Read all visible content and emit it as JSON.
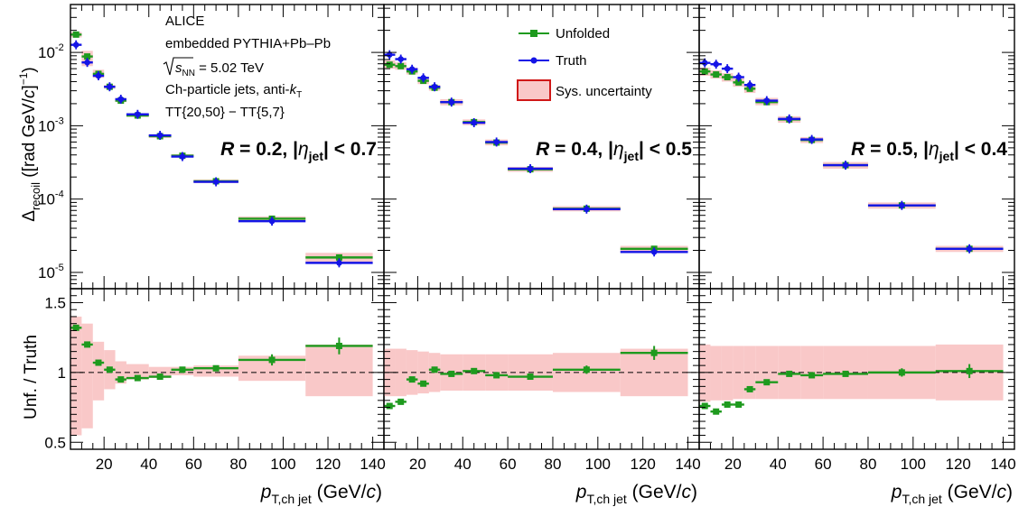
{
  "colors": {
    "unfolded": "#1e9a1e",
    "truth": "#1414e6",
    "sys_fill": "#f9c8c8",
    "sys_edge": "#d01818"
  },
  "legend": {
    "unfolded": "Unfolded",
    "truth": "Truth",
    "sys": "Sys. uncertainty"
  },
  "annotations": {
    "l1": "ALICE",
    "l2": "embedded PYTHIA+Pb–Pb",
    "l3a": "s",
    "l3b": "NN",
    "l3c": " = 5.02 TeV",
    "l4a": "Ch-particle jets, anti-",
    "l4b": "k",
    "l4c": "T",
    "l5": "TT{20,50} − TT{5,7}"
  },
  "axes": {
    "y_top": {
      "a": "Δ",
      "b": "recoil",
      "c": " ([rad GeV/",
      "d": "c",
      "e": "]",
      "f": "−1",
      "g": ")"
    },
    "y_bottom": "Unf. / Truth",
    "x": {
      "a": "p",
      "b": "T,ch jet",
      "c": " (GeV/",
      "d": "c",
      "e": ")"
    },
    "top_ticks": [
      {
        "v": 1e-05,
        "m": "10",
        "e": "-5"
      },
      {
        "v": 0.0001,
        "m": "10",
        "e": "-4"
      },
      {
        "v": 0.001,
        "m": "10",
        "e": "-3"
      },
      {
        "v": 0.01,
        "m": "10",
        "e": "-2"
      }
    ],
    "ratio_ticks": [
      "0.5",
      "1",
      "1.5"
    ],
    "x_ticks": [
      "20",
      "40",
      "60",
      "80",
      "100",
      "120",
      "140"
    ]
  },
  "chart_data": [
    {
      "type": "scatter",
      "label": {
        "a": "R",
        "b": " = 0.2, |",
        "c": "η",
        "d": "jet",
        "e": "| < 0.7"
      },
      "x_edges": [
        5,
        10,
        15,
        20,
        25,
        30,
        40,
        50,
        60,
        80,
        110,
        140
      ],
      "ylim": [
        6e-06,
        0.045
      ],
      "xlim": [
        5,
        145
      ],
      "ratio_ylim": [
        0.45,
        1.6
      ],
      "series": [
        {
          "name": "Unfolded",
          "values": [
            0.0175,
            0.0088,
            0.0051,
            0.0034,
            0.0022,
            0.00138,
            0.00072,
            0.00039,
            0.000175,
            5.4e-05,
            1.6e-05
          ]
        },
        {
          "name": "Truth",
          "values": [
            0.0127,
            0.0073,
            0.0048,
            0.0034,
            0.0023,
            0.00143,
            0.00074,
            0.00038,
            0.000172,
            5e-05,
            1.35e-05
          ]
        }
      ],
      "sys": [
        [
          0.016,
          0.019
        ],
        [
          0.0065,
          0.0105
        ],
        [
          0.0045,
          0.0058
        ],
        [
          0.0032,
          0.0036
        ],
        [
          0.0021,
          0.0024
        ],
        [
          0.00132,
          0.00146
        ],
        [
          0.00068,
          0.00076
        ],
        [
          0.00037,
          0.00041
        ],
        [
          0.000165,
          0.000185
        ],
        [
          5e-05,
          5.8e-05
        ],
        [
          1.35e-05,
          1.85e-05
        ]
      ],
      "ratio": [
        1.32,
        1.2,
        1.07,
        1.02,
        0.95,
        0.96,
        0.97,
        1.02,
        1.03,
        1.09,
        1.19
      ],
      "ratio_sys": [
        [
          0.55,
          1.4
        ],
        [
          0.6,
          1.35
        ],
        [
          0.8,
          1.22
        ],
        [
          0.88,
          1.16
        ],
        [
          0.92,
          1.08
        ],
        [
          0.95,
          1.06
        ],
        [
          0.96,
          1.04
        ],
        [
          0.98,
          1.04
        ],
        [
          0.97,
          1.05
        ],
        [
          0.94,
          1.12
        ],
        [
          0.83,
          1.2
        ]
      ],
      "ratio_err": [
        0.02,
        0.02,
        0.015,
        0.015,
        0.015,
        0.015,
        0.02,
        0.02,
        0.02,
        0.04,
        0.06
      ]
    },
    {
      "type": "scatter",
      "label": {
        "a": "R",
        "b": " = 0.4, |",
        "c": "η",
        "d": "jet",
        "e": "| < 0.5"
      },
      "x_edges": [
        5,
        10,
        15,
        20,
        25,
        30,
        40,
        50,
        60,
        80,
        110,
        140
      ],
      "ylim": [
        6e-06,
        0.045
      ],
      "xlim": [
        5,
        145
      ],
      "ratio_ylim": [
        0.45,
        1.6
      ],
      "series": [
        {
          "name": "Unfolded",
          "values": [
            0.0068,
            0.0065,
            0.0055,
            0.0041,
            0.0033,
            0.0021,
            0.00112,
            0.00059,
            0.000255,
            7.4e-05,
            2.1e-05
          ]
        },
        {
          "name": "Truth",
          "values": [
            0.0093,
            0.0081,
            0.0059,
            0.0045,
            0.0034,
            0.0021,
            0.0011,
            0.0006,
            0.00026,
            7.3e-05,
            1.9e-05
          ]
        }
      ],
      "sys": [
        [
          0.006,
          0.0078
        ],
        [
          0.0058,
          0.0073
        ],
        [
          0.005,
          0.0062
        ],
        [
          0.0037,
          0.0046
        ],
        [
          0.003,
          0.0036
        ],
        [
          0.0019,
          0.0023
        ],
        [
          0.00102,
          0.00122
        ],
        [
          0.00054,
          0.00065
        ],
        [
          0.000235,
          0.000275
        ],
        [
          6.8e-05,
          8e-05
        ],
        [
          1.9e-05,
          2.3e-05
        ]
      ],
      "ratio": [
        0.76,
        0.79,
        0.95,
        0.92,
        1.02,
        0.99,
        1.01,
        0.98,
        0.97,
        1.02,
        1.14
      ],
      "ratio_sys": [
        [
          0.83,
          1.17
        ],
        [
          0.83,
          1.17
        ],
        [
          0.84,
          1.16
        ],
        [
          0.85,
          1.15
        ],
        [
          0.86,
          1.14
        ],
        [
          0.87,
          1.13
        ],
        [
          0.87,
          1.13
        ],
        [
          0.87,
          1.13
        ],
        [
          0.87,
          1.13
        ],
        [
          0.86,
          1.14
        ],
        [
          0.83,
          1.17
        ]
      ],
      "ratio_err": [
        0.02,
        0.02,
        0.015,
        0.015,
        0.015,
        0.015,
        0.02,
        0.02,
        0.02,
        0.03,
        0.05
      ]
    },
    {
      "type": "scatter",
      "label": {
        "a": "R",
        "b": " = 0.5, |",
        "c": "η",
        "d": "jet",
        "e": "| < 0.4"
      },
      "x_edges": [
        5,
        10,
        15,
        20,
        25,
        30,
        40,
        50,
        60,
        80,
        110,
        140
      ],
      "ylim": [
        6e-06,
        0.045
      ],
      "xlim": [
        5,
        145
      ],
      "ratio_ylim": [
        0.45,
        1.6
      ],
      "series": [
        {
          "name": "Unfolded",
          "values": [
            0.0055,
            0.005,
            0.0046,
            0.0039,
            0.0032,
            0.0021,
            0.00122,
            0.00064,
            0.00029,
            8.2e-05,
            2.1e-05
          ]
        },
        {
          "name": "Truth",
          "values": [
            0.0072,
            0.0069,
            0.006,
            0.0046,
            0.0036,
            0.0022,
            0.00124,
            0.00065,
            0.00029,
            8.2e-05,
            2.1e-05
          ]
        }
      ],
      "sys": [
        [
          0.0048,
          0.0062
        ],
        [
          0.0044,
          0.0057
        ],
        [
          0.004,
          0.0052
        ],
        [
          0.0034,
          0.0044
        ],
        [
          0.0028,
          0.0036
        ],
        [
          0.0019,
          0.0024
        ],
        [
          0.0011,
          0.00135
        ],
        [
          0.00058,
          0.0007
        ],
        [
          0.00026,
          0.00032
        ],
        [
          7.4e-05,
          9e-05
        ],
        [
          1.9e-05,
          2.3e-05
        ]
      ],
      "ratio": [
        0.76,
        0.72,
        0.77,
        0.77,
        0.88,
        0.93,
        0.99,
        0.98,
        0.99,
        1.0,
        1.01
      ],
      "ratio_sys": [
        [
          0.79,
          1.2
        ],
        [
          0.8,
          1.19
        ],
        [
          0.8,
          1.19
        ],
        [
          0.81,
          1.19
        ],
        [
          0.81,
          1.19
        ],
        [
          0.81,
          1.19
        ],
        [
          0.81,
          1.19
        ],
        [
          0.81,
          1.19
        ],
        [
          0.81,
          1.19
        ],
        [
          0.81,
          1.19
        ],
        [
          0.8,
          1.2
        ]
      ],
      "ratio_err": [
        0.02,
        0.02,
        0.015,
        0.015,
        0.015,
        0.015,
        0.02,
        0.02,
        0.02,
        0.03,
        0.05
      ]
    }
  ]
}
